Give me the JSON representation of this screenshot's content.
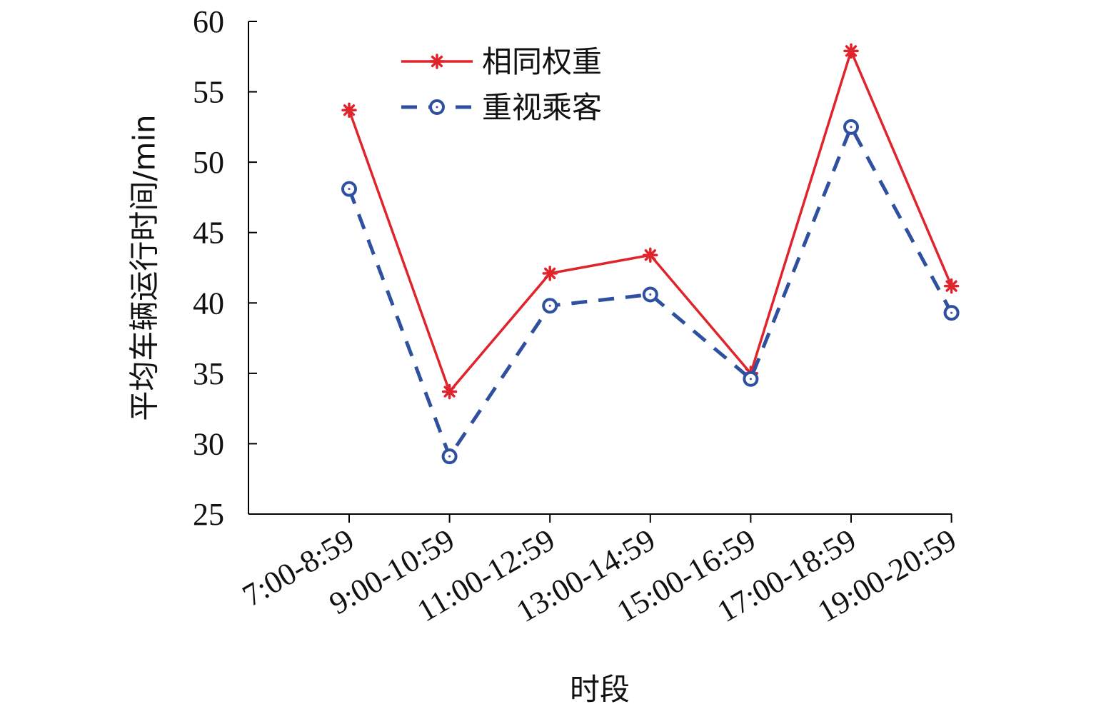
{
  "chart_data": {
    "type": "line",
    "title": "",
    "xlabel": "时段",
    "ylabel": "平均车辆运行时间/min",
    "categories": [
      "7:00-8:59",
      "9:00-10:59",
      "11:00-12:59",
      "13:00-14:59",
      "15:00-16:59",
      "17:00-18:59",
      "19:00-20:59"
    ],
    "ylim": [
      25,
      60
    ],
    "yticks": [
      "25",
      "30",
      "35",
      "40",
      "45",
      "50",
      "55",
      "60"
    ],
    "grid": false,
    "legend_position": "top-center",
    "series": [
      {
        "name": "相同权重",
        "values": [
          53.7,
          33.7,
          42.1,
          43.4,
          35.0,
          57.9,
          41.2
        ],
        "color": "#e0242c",
        "line_style": "solid",
        "marker": "asterisk"
      },
      {
        "name": "重视乘客",
        "values": [
          48.1,
          29.1,
          39.8,
          40.6,
          34.6,
          52.5,
          39.3
        ],
        "color": "#2f4f9f",
        "line_style": "dashed",
        "marker": "circle"
      }
    ]
  }
}
